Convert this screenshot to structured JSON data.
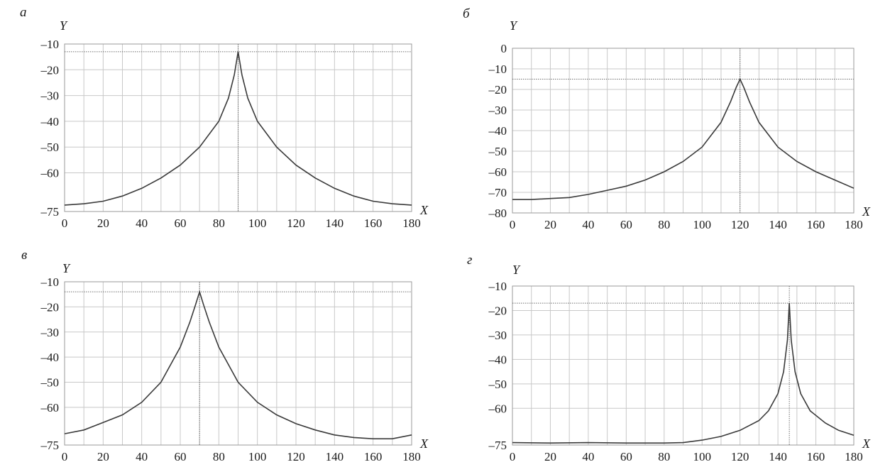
{
  "chart_data": [
    {
      "type": "line",
      "panel_label": "а",
      "xlabel": "X",
      "ylabel": "Y",
      "x_ticks": [
        "0",
        "20",
        "40",
        "60",
        "80",
        "100",
        "120",
        "140",
        "160",
        "180"
      ],
      "y_ticks": [
        "-10",
        "-20",
        "-30",
        "-40",
        "-50",
        "-60",
        "-75"
      ],
      "xlim": [
        0,
        180
      ],
      "ylim": [
        -75,
        -10
      ],
      "grid": true,
      "peak_x": 90,
      "peak_y": -13,
      "series": [
        {
          "x": [
            0,
            10,
            20,
            30,
            40,
            50,
            60,
            70,
            80,
            85,
            88,
            90,
            92,
            95,
            100,
            110,
            120,
            130,
            140,
            150,
            160,
            170,
            180
          ],
          "y": [
            -72.5,
            -72,
            -71,
            -69,
            -66,
            -62,
            -57,
            -50,
            -40,
            -31,
            -22,
            -13,
            -22,
            -31,
            -40,
            -50,
            -57,
            -62,
            -66,
            -69,
            -71,
            -72,
            -72.5
          ]
        }
      ]
    },
    {
      "type": "line",
      "panel_label": "б",
      "xlabel": "X",
      "ylabel": "Y",
      "x_ticks": [
        "0",
        "20",
        "40",
        "60",
        "80",
        "100",
        "120",
        "140",
        "160",
        "180"
      ],
      "y_ticks": [
        "0",
        "-10",
        "-20",
        "-30",
        "-40",
        "-50",
        "-60",
        "-70",
        "-80"
      ],
      "xlim": [
        0,
        180
      ],
      "ylim": [
        -80,
        0
      ],
      "grid": true,
      "peak_x": 120,
      "peak_y": -15,
      "series": [
        {
          "x": [
            0,
            10,
            20,
            30,
            40,
            50,
            60,
            70,
            80,
            90,
            100,
            110,
            115,
            118,
            120,
            122,
            125,
            130,
            140,
            150,
            160,
            170,
            180
          ],
          "y": [
            -73.5,
            -73.5,
            -73,
            -72.5,
            -71,
            -69,
            -67,
            -64,
            -60,
            -55,
            -48,
            -36,
            -26,
            -19,
            -15,
            -19,
            -26,
            -36,
            -48,
            -55,
            -60,
            -64,
            -68
          ]
        }
      ]
    },
    {
      "type": "line",
      "panel_label": "в",
      "xlabel": "X",
      "ylabel": "Y",
      "x_ticks": [
        "0",
        "20",
        "40",
        "60",
        "80",
        "100",
        "120",
        "140",
        "160",
        "180"
      ],
      "y_ticks": [
        "-10",
        "-20",
        "-30",
        "-40",
        "-50",
        "-60",
        "-75"
      ],
      "xlim": [
        0,
        180
      ],
      "ylim": [
        -75,
        -10
      ],
      "grid": true,
      "peak_x": 70,
      "peak_y": -14,
      "series": [
        {
          "x": [
            0,
            10,
            20,
            30,
            40,
            50,
            60,
            65,
            68,
            70,
            72,
            75,
            80,
            90,
            100,
            110,
            120,
            130,
            140,
            150,
            160,
            170,
            180
          ],
          "y": [
            -70.5,
            -69,
            -66,
            -63,
            -58,
            -50,
            -36,
            -26,
            -19,
            -14,
            -19,
            -26,
            -36,
            -50,
            -58,
            -63,
            -66.5,
            -69,
            -71,
            -72,
            -72.5,
            -72.5,
            -71
          ]
        }
      ]
    },
    {
      "type": "line",
      "panel_label": "г",
      "xlabel": "X",
      "ylabel": "Y",
      "x_ticks": [
        "0",
        "20",
        "40",
        "60",
        "80",
        "100",
        "120",
        "140",
        "160",
        "180"
      ],
      "y_ticks": [
        "-10",
        "-20",
        "-30",
        "-40",
        "-50",
        "-60",
        "-75"
      ],
      "xlim": [
        0,
        180
      ],
      "ylim": [
        -75,
        -10
      ],
      "grid": true,
      "peak_x": 146,
      "peak_y": -17,
      "series": [
        {
          "x": [
            0,
            20,
            40,
            60,
            80,
            90,
            100,
            110,
            120,
            130,
            135,
            140,
            143,
            145,
            146,
            147,
            149,
            152,
            157,
            165,
            172,
            180
          ],
          "y": [
            -74,
            -74.2,
            -74,
            -74.2,
            -74.2,
            -74,
            -73,
            -71.5,
            -69,
            -65,
            -61,
            -54,
            -45,
            -32,
            -17,
            -32,
            -45,
            -54,
            -61,
            -66,
            -69,
            -71
          ]
        }
      ]
    }
  ]
}
